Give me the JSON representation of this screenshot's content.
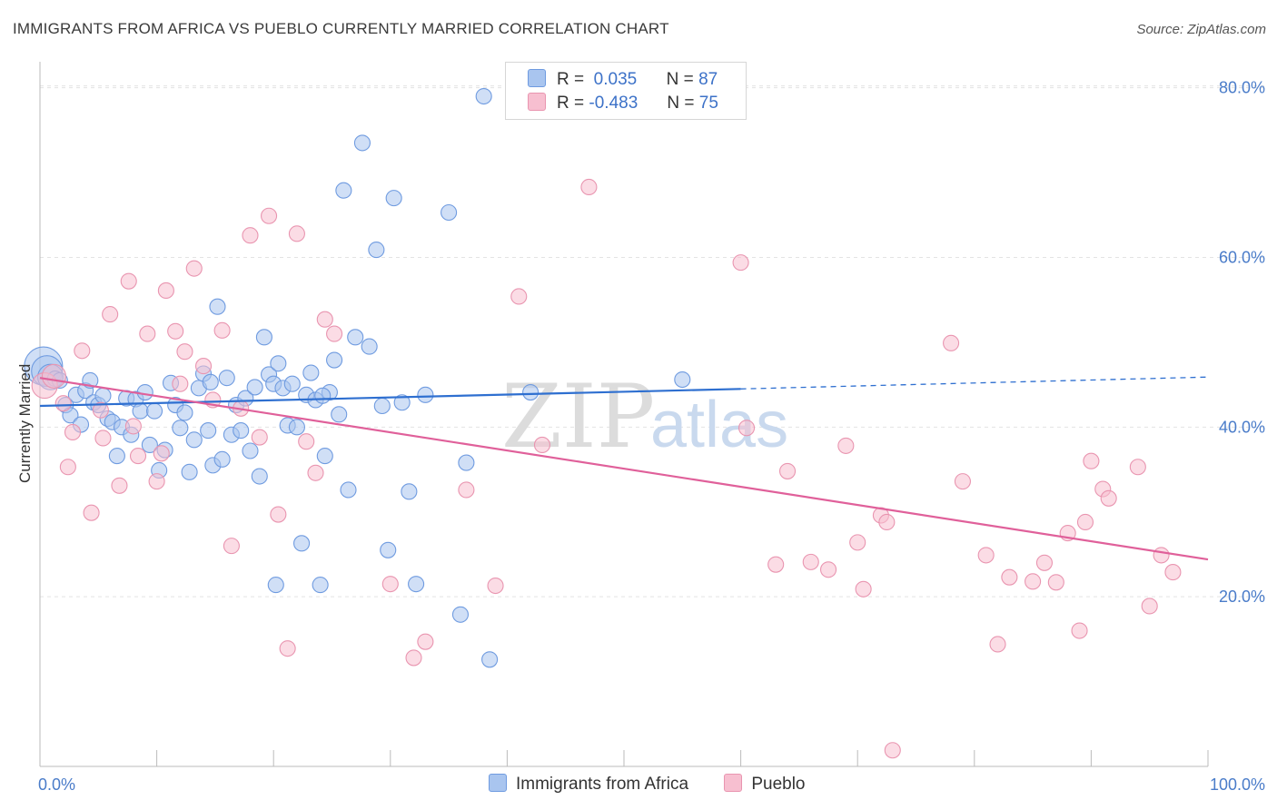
{
  "header": {
    "title": "IMMIGRANTS FROM AFRICA VS PUEBLO CURRENTLY MARRIED CORRELATION CHART",
    "source": "Source: ZipAtlas.com"
  },
  "watermark": {
    "zip": "ZIP",
    "atlas": "atlas"
  },
  "legend": {
    "r_label": "R =",
    "n_label": "N =",
    "rows": [
      {
        "r": "0.035",
        "n": "87",
        "color": "#a9c5ef",
        "border": "#6f9be0"
      },
      {
        "r": "-0.483",
        "n": "75",
        "color": "#f7bfd0",
        "border": "#e995b0"
      }
    ]
  },
  "chart_data": {
    "type": "scatter",
    "title": "IMMIGRANTS FROM AFRICA VS PUEBLO CURRENTLY MARRIED CORRELATION CHART",
    "xlabel": "",
    "ylabel": "Currently Married",
    "xlim": [
      0,
      100
    ],
    "ylim": [
      0,
      82
    ],
    "x_ticks": [
      "0.0%",
      "100.0%"
    ],
    "y_ticks": [
      {
        "value": 20,
        "label": "20.0%"
      },
      {
        "value": 40,
        "label": "40.0%"
      },
      {
        "value": 60,
        "label": "60.0%"
      },
      {
        "value": 80,
        "label": "80.0%"
      }
    ],
    "grid": true,
    "legend_position": "bottom-center",
    "series": [
      {
        "name": "Immigrants from Africa",
        "color": "#a9c5ef",
        "stroke": "#6f9be0",
        "line_color": "#2e6fd0",
        "trend": {
          "x0": 0,
          "y0": 42.5,
          "x1": 60,
          "y1": 44.5,
          "dash_x1": 100,
          "dash_y1": 45.9
        },
        "points": [
          [
            0.3,
            47.2
          ],
          [
            0.6,
            46.6
          ],
          [
            0.9,
            45.9
          ],
          [
            1.3,
            45.7
          ],
          [
            1.7,
            45.5
          ],
          [
            2.2,
            42.6
          ],
          [
            2.6,
            41.4
          ],
          [
            3.1,
            43.8
          ],
          [
            3.5,
            40.3
          ],
          [
            3.9,
            44.3
          ],
          [
            4.3,
            45.5
          ],
          [
            4.6,
            42.9
          ],
          [
            5.0,
            42.6
          ],
          [
            5.4,
            43.7
          ],
          [
            5.8,
            41.0
          ],
          [
            6.2,
            40.6
          ],
          [
            6.6,
            36.6
          ],
          [
            7.0,
            40.0
          ],
          [
            7.4,
            43.4
          ],
          [
            7.8,
            39.1
          ],
          [
            8.2,
            43.3
          ],
          [
            8.6,
            41.9
          ],
          [
            9.0,
            44.1
          ],
          [
            9.4,
            37.9
          ],
          [
            9.8,
            41.9
          ],
          [
            10.2,
            34.9
          ],
          [
            10.7,
            37.3
          ],
          [
            11.2,
            45.2
          ],
          [
            11.6,
            42.6
          ],
          [
            12.0,
            39.9
          ],
          [
            12.4,
            41.7
          ],
          [
            12.8,
            34.7
          ],
          [
            13.2,
            38.5
          ],
          [
            13.6,
            44.6
          ],
          [
            14.0,
            46.3
          ],
          [
            14.4,
            39.6
          ],
          [
            14.8,
            35.5
          ],
          [
            15.2,
            54.2
          ],
          [
            15.6,
            36.2
          ],
          [
            16.0,
            45.8
          ],
          [
            16.4,
            39.1
          ],
          [
            16.8,
            42.6
          ],
          [
            17.2,
            39.6
          ],
          [
            17.6,
            43.4
          ],
          [
            18.0,
            37.2
          ],
          [
            18.4,
            44.7
          ],
          [
            18.8,
            34.2
          ],
          [
            19.2,
            50.6
          ],
          [
            19.6,
            46.2
          ],
          [
            20.0,
            45.1
          ],
          [
            20.4,
            47.5
          ],
          [
            20.8,
            44.6
          ],
          [
            21.2,
            40.2
          ],
          [
            21.6,
            45.1
          ],
          [
            22.0,
            40.0
          ],
          [
            22.4,
            26.3
          ],
          [
            22.8,
            43.8
          ],
          [
            23.2,
            46.4
          ],
          [
            23.6,
            43.2
          ],
          [
            24.0,
            21.4
          ],
          [
            24.4,
            36.6
          ],
          [
            24.8,
            44.1
          ],
          [
            25.2,
            47.9
          ],
          [
            25.6,
            41.5
          ],
          [
            26.0,
            67.9
          ],
          [
            26.4,
            32.6
          ],
          [
            27.0,
            50.6
          ],
          [
            27.6,
            73.5
          ],
          [
            28.2,
            49.5
          ],
          [
            28.8,
            60.9
          ],
          [
            29.3,
            42.5
          ],
          [
            29.8,
            25.5
          ],
          [
            30.3,
            67.0
          ],
          [
            31.0,
            42.9
          ],
          [
            31.6,
            32.4
          ],
          [
            32.2,
            21.5
          ],
          [
            33.0,
            43.8
          ],
          [
            35.0,
            65.3
          ],
          [
            36.5,
            35.8
          ],
          [
            38.0,
            79.0
          ],
          [
            36.0,
            17.9
          ],
          [
            38.5,
            12.6
          ],
          [
            20.2,
            21.4
          ],
          [
            24.2,
            43.7
          ],
          [
            42.0,
            44.1
          ],
          [
            55.0,
            45.6
          ],
          [
            14.6,
            45.3
          ]
        ],
        "sizes": [
          42,
          34,
          28
        ]
      },
      {
        "name": "Pueblo",
        "color": "#f7bfd0",
        "stroke": "#e995b0",
        "line_color": "#e0609a",
        "trend": {
          "x0": 0,
          "y0": 45.8,
          "x1": 100,
          "y1": 24.4
        },
        "points": [
          [
            0.4,
            44.9
          ],
          [
            1.2,
            46.0
          ],
          [
            2.0,
            42.8
          ],
          [
            2.8,
            39.4
          ],
          [
            3.6,
            49.0
          ],
          [
            4.4,
            29.9
          ],
          [
            5.2,
            42.0
          ],
          [
            6.0,
            53.3
          ],
          [
            6.8,
            33.1
          ],
          [
            7.6,
            57.2
          ],
          [
            8.4,
            36.6
          ],
          [
            9.2,
            51.0
          ],
          [
            10.0,
            33.6
          ],
          [
            10.8,
            56.1
          ],
          [
            11.6,
            51.3
          ],
          [
            12.4,
            48.9
          ],
          [
            13.2,
            58.7
          ],
          [
            14.0,
            47.2
          ],
          [
            14.8,
            43.2
          ],
          [
            15.6,
            51.4
          ],
          [
            16.4,
            26.0
          ],
          [
            17.2,
            42.2
          ],
          [
            18.0,
            62.6
          ],
          [
            18.8,
            38.8
          ],
          [
            19.6,
            64.9
          ],
          [
            20.4,
            29.7
          ],
          [
            21.2,
            13.9
          ],
          [
            22.0,
            62.8
          ],
          [
            22.8,
            38.3
          ],
          [
            23.6,
            34.6
          ],
          [
            24.4,
            52.7
          ],
          [
            25.2,
            51.0
          ],
          [
            30.0,
            21.5
          ],
          [
            32.0,
            12.8
          ],
          [
            33.0,
            14.7
          ],
          [
            36.5,
            32.6
          ],
          [
            39.0,
            21.3
          ],
          [
            41.0,
            55.4
          ],
          [
            43.0,
            37.9
          ],
          [
            47.0,
            68.3
          ],
          [
            60.0,
            59.4
          ],
          [
            60.5,
            39.9
          ],
          [
            63.0,
            23.8
          ],
          [
            64.0,
            34.8
          ],
          [
            66.0,
            24.1
          ],
          [
            67.5,
            23.2
          ],
          [
            69.0,
            37.8
          ],
          [
            70.0,
            26.4
          ],
          [
            70.5,
            20.9
          ],
          [
            72.0,
            29.6
          ],
          [
            72.5,
            28.8
          ],
          [
            78.0,
            49.9
          ],
          [
            79.0,
            33.6
          ],
          [
            81.0,
            24.9
          ],
          [
            82.0,
            14.4
          ],
          [
            83.0,
            22.3
          ],
          [
            85.0,
            21.8
          ],
          [
            86.0,
            24.0
          ],
          [
            87.0,
            21.7
          ],
          [
            88.0,
            27.5
          ],
          [
            89.0,
            16.0
          ],
          [
            89.5,
            28.8
          ],
          [
            90.0,
            36.0
          ],
          [
            91.0,
            32.7
          ],
          [
            91.5,
            31.6
          ],
          [
            94.0,
            35.3
          ],
          [
            95.0,
            18.9
          ],
          [
            96.0,
            24.9
          ],
          [
            97.0,
            22.9
          ],
          [
            73.0,
            1.9
          ],
          [
            2.4,
            35.3
          ],
          [
            8.0,
            40.1
          ],
          [
            5.4,
            38.7
          ],
          [
            12.0,
            45.1
          ],
          [
            10.4,
            36.9
          ]
        ],
        "sizes": [
          28,
          26
        ]
      }
    ]
  }
}
